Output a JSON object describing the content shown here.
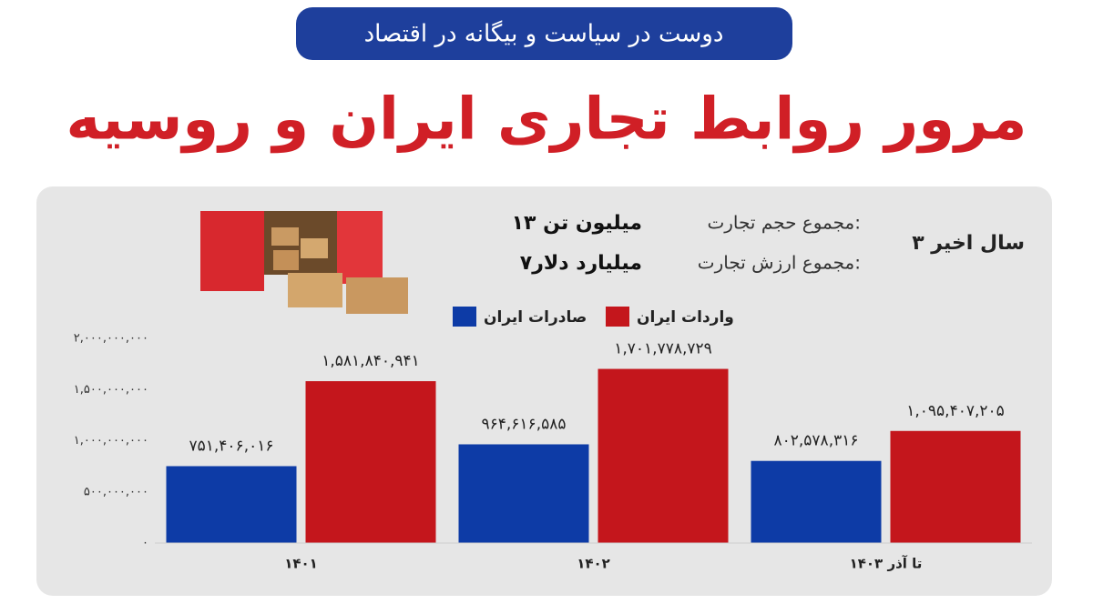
{
  "chart_data": {
    "type": "bar",
    "badge": "دوست در سیاست و بیگانه در اقتصاد",
    "title": "مرور روابط تجاری ایران و روسیه",
    "subtitle": "۳ سال اخیر",
    "summary": [
      {
        "label": "مجموع حجم تجارت:",
        "value": "۱۳ میلیون تن"
      },
      {
        "label": "مجموع ارزش تجارت:",
        "value": "۷میلیارد دلار"
      }
    ],
    "categories": [
      "۱۴۰۱",
      "۱۴۰۲",
      "تا آذر ۱۴۰۳"
    ],
    "series": [
      {
        "name": "صادرات ایران",
        "color": "#0d3ba6",
        "values": [
          751406016,
          964616585,
          802578316
        ],
        "value_labels": [
          "۷۵۱,۴۰۶,۰۱۶",
          "۹۶۴,۶۱۶,۵۸۵",
          "۸۰۲,۵۷۸,۳۱۶"
        ]
      },
      {
        "name": "واردات ایران",
        "color": "#c4161c",
        "values": [
          1581840941,
          1701778729,
          1095407205
        ],
        "value_labels": [
          "۱,۵۸۱,۸۴۰,۹۴۱",
          "۱,۷۰۱,۷۷۸,۷۲۹",
          "۱,۰۹۵,۴۰۷,۲۰۵"
        ]
      }
    ],
    "ylim": [
      0,
      2000000000
    ],
    "yticks": [
      {
        "value": 0,
        "label": "۰"
      },
      {
        "value": 500000000,
        "label": "۵۰۰,۰۰۰,۰۰۰"
      },
      {
        "value": 1000000000,
        "label": "۱,۰۰۰,۰۰۰,۰۰۰"
      },
      {
        "value": 1500000000,
        "label": "۱,۵۰۰,۰۰۰,۰۰۰"
      },
      {
        "value": 2000000000,
        "label": "۲,۰۰۰,۰۰۰,۰۰۰"
      }
    ],
    "grid": false
  }
}
